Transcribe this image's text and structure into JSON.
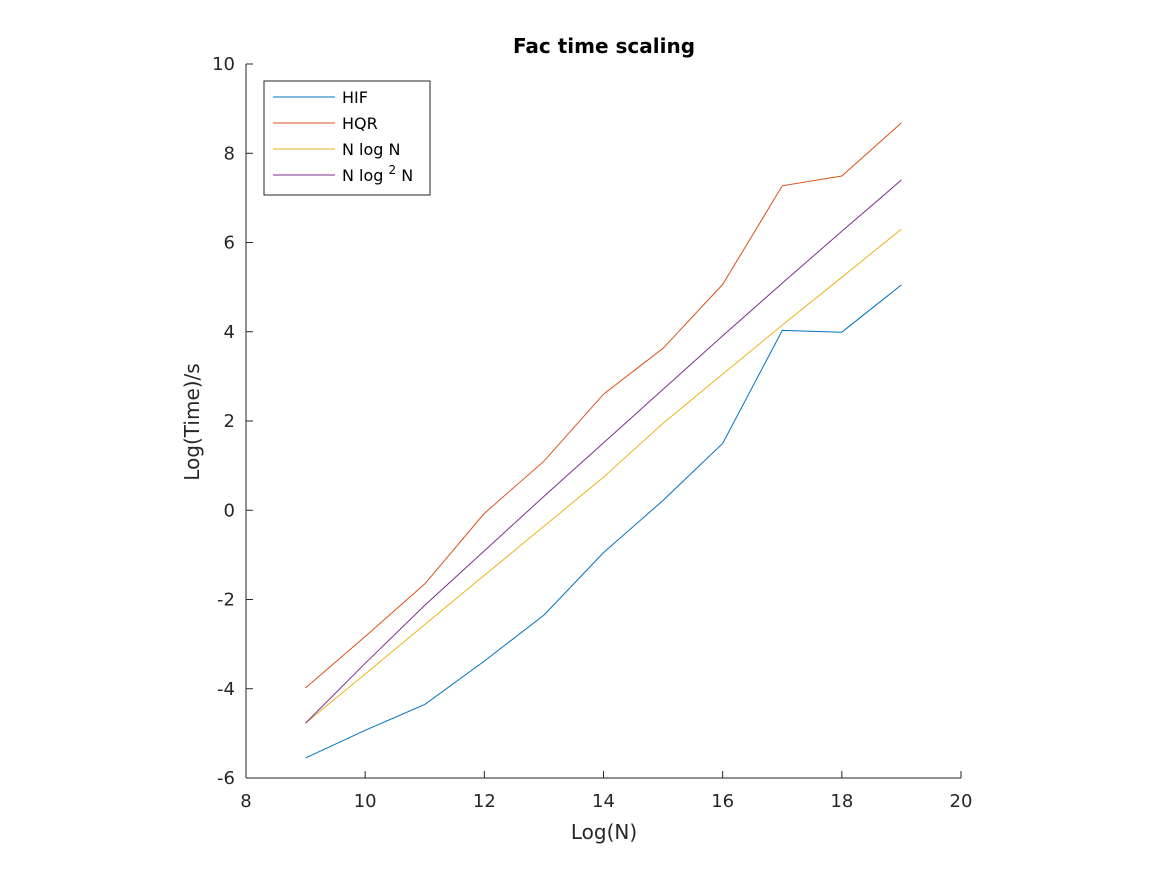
{
  "chart_data": {
    "type": "line",
    "title": "Fac time scaling",
    "xlabel": "Log(N)",
    "ylabel": "Log(Time)/s",
    "xlim": [
      8,
      20
    ],
    "ylim": [
      -6,
      10
    ],
    "xticks": [
      8,
      10,
      12,
      14,
      16,
      18,
      20
    ],
    "yticks": [
      -6,
      -4,
      -2,
      0,
      2,
      4,
      6,
      8,
      10
    ],
    "grid": false,
    "legend_position": "top-left",
    "series": [
      {
        "name": "HIF",
        "color": "#0072BD",
        "x": [
          9,
          10,
          11,
          12,
          13,
          14,
          15,
          16,
          17,
          18,
          19
        ],
        "y": [
          -5.55,
          -4.93,
          -4.35,
          -3.38,
          -2.35,
          -0.95,
          0.22,
          1.5,
          4.03,
          3.99,
          5.05
        ]
      },
      {
        "name": "HQR",
        "color": "#D95319",
        "x": [
          9,
          10,
          11,
          12,
          13,
          14,
          15,
          16,
          17,
          18,
          19
        ],
        "y": [
          -3.98,
          -2.83,
          -1.65,
          -0.07,
          1.1,
          2.6,
          3.63,
          5.06,
          7.27,
          7.49,
          8.68
        ]
      },
      {
        "name": "N log N",
        "color": "#EDB120",
        "x": [
          9,
          10,
          11,
          12,
          13,
          14,
          15,
          16,
          17,
          18,
          19
        ],
        "y": [
          -4.77,
          -3.67,
          -2.56,
          -1.46,
          -0.36,
          0.74,
          1.95,
          3.05,
          4.15,
          5.22,
          6.3
        ]
      },
      {
        "name": "N log",
        "superscript": "2",
        "name_suffix": " N",
        "color": "#7E2F8E",
        "x": [
          9,
          10,
          11,
          12,
          13,
          14,
          15,
          16,
          17,
          18,
          19
        ],
        "y": [
          -4.77,
          -3.43,
          -2.13,
          -0.91,
          0.31,
          1.51,
          2.71,
          3.91,
          5.09,
          6.25,
          7.4
        ]
      }
    ]
  }
}
